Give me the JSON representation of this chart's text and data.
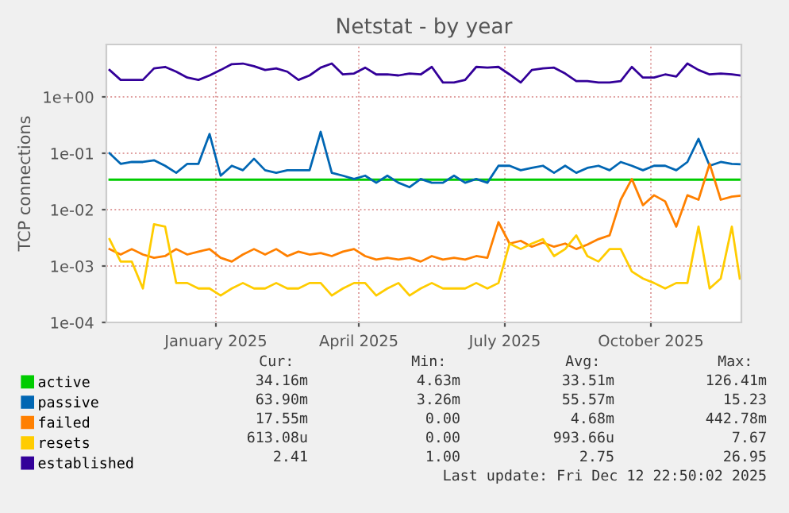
{
  "chart_data": {
    "type": "line",
    "title": "Netstat - by year",
    "ylabel": "TCP connections",
    "log": "y",
    "grid": true,
    "legend": "bottom",
    "xlim": [
      "2024-11-08",
      "2025-12-13"
    ],
    "xticks": [
      {
        "value": "2025-01-16",
        "label": "January 2025"
      },
      {
        "value": "2025-04-16",
        "label": "April 2025"
      },
      {
        "value": "2025-07-17",
        "label": "July 2025"
      },
      {
        "value": "2025-10-17",
        "label": "October 2025"
      }
    ],
    "ylim": [
      0.0001,
      8.5
    ],
    "yticks": [
      {
        "value": 0.0001,
        "label": "1e-04"
      },
      {
        "value": 0.001,
        "label": "1e-03"
      },
      {
        "value": 0.01,
        "label": "1e-02"
      },
      {
        "value": 0.1,
        "label": "1e-01"
      },
      {
        "value": 1,
        "label": "1e+00"
      }
    ],
    "x": [
      "2024-11-10",
      "2024-11-17",
      "2024-11-24",
      "2024-12-01",
      "2024-12-08",
      "2024-12-15",
      "2024-12-22",
      "2024-12-29",
      "2025-01-05",
      "2025-01-12",
      "2025-01-19",
      "2025-01-26",
      "2025-02-02",
      "2025-02-09",
      "2025-02-16",
      "2025-02-23",
      "2025-03-02",
      "2025-03-09",
      "2025-03-16",
      "2025-03-23",
      "2025-03-30",
      "2025-04-06",
      "2025-04-13",
      "2025-04-20",
      "2025-04-27",
      "2025-05-04",
      "2025-05-11",
      "2025-05-18",
      "2025-05-25",
      "2025-06-01",
      "2025-06-08",
      "2025-06-15",
      "2025-06-22",
      "2025-06-29",
      "2025-07-06",
      "2025-07-13",
      "2025-07-20",
      "2025-07-27",
      "2025-08-03",
      "2025-08-10",
      "2025-08-17",
      "2025-08-24",
      "2025-08-31",
      "2025-09-07",
      "2025-09-14",
      "2025-09-21",
      "2025-09-28",
      "2025-10-05",
      "2025-10-12",
      "2025-10-19",
      "2025-10-26",
      "2025-11-02",
      "2025-11-09",
      "2025-11-16",
      "2025-11-23",
      "2025-11-30",
      "2025-12-07",
      "2025-12-12"
    ],
    "series": [
      {
        "name": "active",
        "color": "#00cc00",
        "values": [
          0.034,
          0.034,
          0.034,
          0.034,
          0.034,
          0.034,
          0.034,
          0.034,
          0.034,
          0.034,
          0.034,
          0.034,
          0.034,
          0.034,
          0.034,
          0.034,
          0.034,
          0.034,
          0.034,
          0.034,
          0.034,
          0.034,
          0.034,
          0.034,
          0.034,
          0.034,
          0.034,
          0.034,
          0.034,
          0.034,
          0.034,
          0.034,
          0.034,
          0.034,
          0.034,
          0.034,
          0.034,
          0.034,
          0.034,
          0.034,
          0.034,
          0.034,
          0.034,
          0.034,
          0.034,
          0.034,
          0.034,
          0.034,
          0.034,
          0.034,
          0.034,
          0.034,
          0.034,
          0.034,
          0.034,
          0.034,
          0.034,
          0.034
        ]
      },
      {
        "name": "passive",
        "color": "#0066b3",
        "values": [
          0.1,
          0.065,
          0.07,
          0.07,
          0.075,
          0.06,
          0.045,
          0.065,
          0.065,
          0.22,
          0.04,
          0.06,
          0.05,
          0.08,
          0.05,
          0.045,
          0.05,
          0.05,
          0.05,
          0.24,
          0.045,
          0.04,
          0.035,
          0.04,
          0.03,
          0.04,
          0.03,
          0.025,
          0.035,
          0.03,
          0.03,
          0.04,
          0.03,
          0.035,
          0.03,
          0.06,
          0.06,
          0.05,
          0.055,
          0.06,
          0.045,
          0.06,
          0.045,
          0.055,
          0.06,
          0.05,
          0.07,
          0.06,
          0.05,
          0.06,
          0.06,
          0.05,
          0.07,
          0.18,
          0.06,
          0.07,
          0.065,
          0.064
        ]
      },
      {
        "name": "failed",
        "color": "#ff8000",
        "values": [
          0.002,
          0.0016,
          0.002,
          0.0016,
          0.0014,
          0.0015,
          0.002,
          0.0016,
          0.0018,
          0.002,
          0.0014,
          0.0012,
          0.0016,
          0.002,
          0.0016,
          0.002,
          0.0015,
          0.0018,
          0.0016,
          0.0017,
          0.0015,
          0.0018,
          0.002,
          0.0015,
          0.0013,
          0.0014,
          0.0013,
          0.0014,
          0.0012,
          0.0015,
          0.0013,
          0.0014,
          0.0013,
          0.0015,
          0.0014,
          0.006,
          0.0025,
          0.0028,
          0.0022,
          0.0026,
          0.0022,
          0.0025,
          0.002,
          0.0024,
          0.003,
          0.0035,
          0.015,
          0.035,
          0.012,
          0.018,
          0.014,
          0.005,
          0.018,
          0.015,
          0.065,
          0.015,
          0.017,
          0.0176
        ]
      },
      {
        "name": "resets",
        "color": "#ffcc00",
        "values": [
          0.003,
          0.0012,
          0.0012,
          0.0004,
          0.0055,
          0.005,
          0.0005,
          0.0005,
          0.0004,
          0.0004,
          0.0003,
          0.0004,
          0.0005,
          0.0004,
          0.0004,
          0.0005,
          0.0004,
          0.0004,
          0.0005,
          0.0005,
          0.0003,
          0.0004,
          0.0005,
          0.0005,
          0.0003,
          0.0004,
          0.0005,
          0.0003,
          0.0004,
          0.0005,
          0.0004,
          0.0004,
          0.0004,
          0.0005,
          0.0004,
          0.0005,
          0.0025,
          0.002,
          0.0025,
          0.003,
          0.0015,
          0.002,
          0.0035,
          0.0015,
          0.0012,
          0.002,
          0.002,
          0.0008,
          0.0006,
          0.0005,
          0.0004,
          0.0005,
          0.0005,
          0.005,
          0.0004,
          0.0006,
          0.005,
          0.0006
        ]
      },
      {
        "name": "established",
        "color": "#330099",
        "values": [
          3.0,
          2.0,
          2.0,
          2.0,
          3.2,
          3.4,
          2.8,
          2.2,
          2.0,
          2.4,
          3.0,
          3.8,
          3.9,
          3.5,
          3.0,
          3.2,
          2.8,
          2.0,
          2.4,
          3.3,
          3.9,
          2.5,
          2.6,
          3.3,
          2.5,
          2.5,
          2.4,
          2.6,
          2.5,
          3.4,
          1.8,
          1.8,
          2.0,
          3.4,
          3.3,
          3.4,
          2.5,
          1.8,
          3.0,
          3.2,
          3.3,
          2.6,
          1.9,
          1.9,
          1.8,
          1.8,
          1.9,
          3.4,
          2.2,
          2.2,
          2.5,
          2.3,
          3.9,
          3.0,
          2.5,
          2.6,
          2.5,
          2.41
        ]
      }
    ],
    "annotations": [
      "Cur:",
      "Min:",
      "Avg:",
      "Max:",
      "34.16m",
      "4.63m",
      "33.51m",
      "126.41m",
      "63.90m",
      "3.26m",
      "55.57m",
      "15.23",
      "17.55m",
      "0.00",
      "4.68m",
      "442.78m",
      "613.08u",
      "0.00",
      "993.66u",
      "7.67",
      "2.41",
      "1.00",
      "2.75",
      "26.95",
      "Last update: Fri Dec 12 22:50:02 2025"
    ]
  }
}
